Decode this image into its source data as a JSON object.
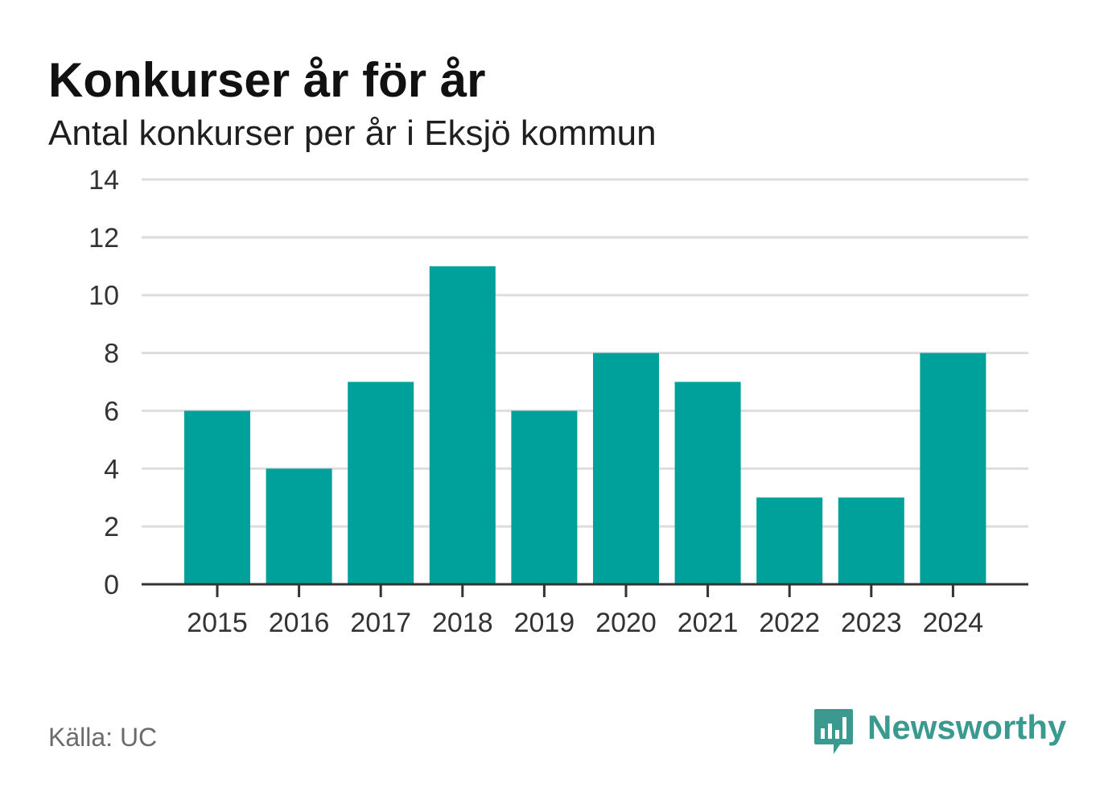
{
  "title": "Konkurser år för år",
  "subtitle": "Antal konkurser per år i Eksjö kommun",
  "source": "Källa: UC",
  "brand": {
    "name": "Newsworthy",
    "logo_icon": "bar-chart-speech-bubble-icon",
    "color": "#3a9a90"
  },
  "colors": {
    "bar": "#00a19a",
    "grid": "#dddddd",
    "axis": "#333333"
  },
  "chart_data": {
    "type": "bar",
    "categories": [
      "2015",
      "2016",
      "2017",
      "2018",
      "2019",
      "2020",
      "2021",
      "2022",
      "2023",
      "2024"
    ],
    "values": [
      6,
      4,
      7,
      11,
      6,
      8,
      7,
      3,
      3,
      8
    ],
    "title": "Konkurser år för år",
    "subtitle": "Antal konkurser per år i Eksjö kommun",
    "xlabel": "",
    "ylabel": "",
    "ylim": [
      0,
      14
    ],
    "yticks": [
      0,
      2,
      4,
      6,
      8,
      10,
      12,
      14
    ],
    "grid": true,
    "legend": "none"
  }
}
